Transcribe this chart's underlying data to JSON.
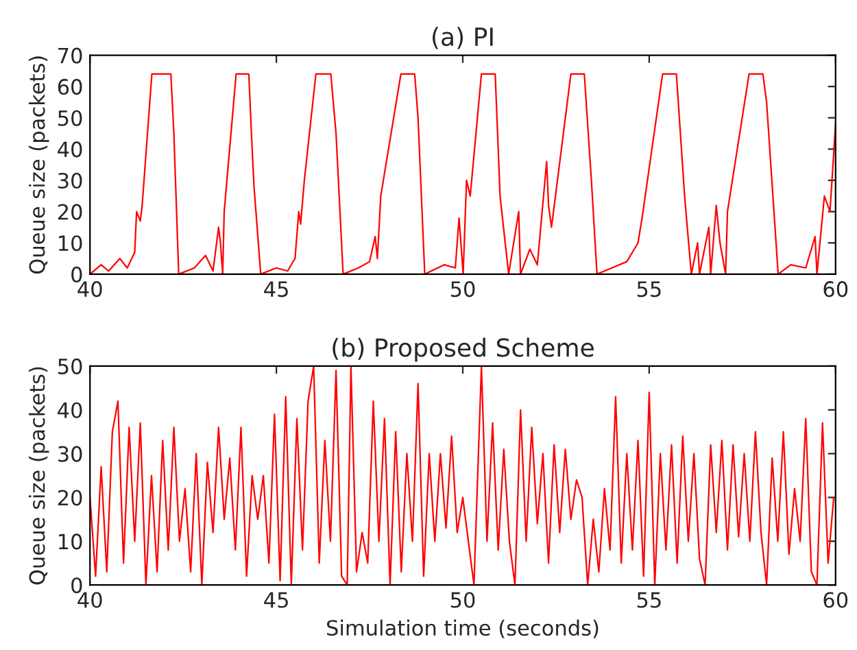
{
  "chart_data": [
    {
      "type": "line",
      "title": "(a) PI",
      "ylabel": "Queue size (packets)",
      "xlim": [
        40,
        60
      ],
      "ylim": [
        0,
        70
      ],
      "xticks": [
        40,
        45,
        50,
        55,
        60
      ],
      "yticks": [
        0,
        10,
        20,
        30,
        40,
        50,
        60,
        70
      ],
      "grid": false,
      "legend": false,
      "series": [
        {
          "color": "#ff0000",
          "x": [
            40.0,
            40.3,
            40.5,
            40.8,
            41.0,
            41.2,
            41.25,
            41.35,
            41.4,
            41.66,
            42.17,
            42.25,
            42.38,
            42.8,
            43.1,
            43.3,
            43.45,
            43.5,
            43.56,
            43.6,
            43.92,
            44.26,
            44.35,
            44.4,
            44.58,
            45.0,
            45.3,
            45.5,
            45.6,
            45.65,
            45.75,
            46.06,
            46.46,
            46.6,
            46.79,
            47.2,
            47.5,
            47.65,
            47.71,
            47.8,
            48.34,
            48.71,
            48.8,
            48.98,
            49.5,
            49.8,
            49.9,
            50.01,
            50.1,
            50.2,
            50.5,
            50.87,
            51.0,
            51.23,
            51.5,
            51.55,
            51.8,
            52.0,
            52.25,
            52.3,
            52.38,
            52.9,
            53.26,
            53.45,
            53.6,
            54.0,
            54.4,
            54.7,
            54.81,
            55.36,
            55.73,
            55.95,
            56.13,
            56.3,
            56.35,
            56.6,
            56.65,
            56.8,
            56.9,
            57.05,
            57.1,
            57.68,
            58.05,
            58.15,
            58.46,
            58.8,
            59.2,
            59.45,
            59.5,
            59.7,
            59.85,
            60.0
          ],
          "values": [
            0,
            3,
            1,
            5,
            2,
            7,
            20,
            17,
            22,
            64,
            64,
            45,
            0,
            2,
            6,
            1,
            15,
            10,
            0,
            20,
            64,
            64,
            40,
            28,
            0,
            2,
            1,
            5,
            20,
            16,
            30,
            64,
            64,
            45,
            0,
            2,
            4,
            12,
            5,
            25,
            64,
            64,
            50,
            0,
            3,
            2,
            18,
            0,
            30,
            25,
            64,
            64,
            25,
            0,
            20,
            0,
            8,
            3,
            36,
            22,
            15,
            64,
            64,
            30,
            0,
            2,
            4,
            10,
            18,
            64,
            64,
            25,
            0,
            10,
            0,
            15,
            0,
            22,
            10,
            0,
            20,
            64,
            64,
            55,
            0,
            3,
            2,
            12,
            0,
            25,
            20,
            48
          ]
        }
      ]
    },
    {
      "type": "line",
      "title": "(b) Proposed Scheme",
      "xlabel": "Simulation time (seconds)",
      "ylabel": "Queue size (packets)",
      "xlim": [
        40,
        60
      ],
      "ylim": [
        0,
        50
      ],
      "xticks": [
        40,
        45,
        50,
        55,
        60
      ],
      "yticks": [
        0,
        10,
        20,
        30,
        40,
        50
      ],
      "grid": false,
      "legend": false,
      "series": [
        {
          "color": "#ff0000",
          "x": [
            40.0,
            40.15,
            40.3,
            40.45,
            40.6,
            40.75,
            40.9,
            41.05,
            41.2,
            41.35,
            41.5,
            41.65,
            41.8,
            41.95,
            42.1,
            42.25,
            42.4,
            42.55,
            42.7,
            42.85,
            43.0,
            43.15,
            43.3,
            43.45,
            43.6,
            43.75,
            43.9,
            44.05,
            44.2,
            44.35,
            44.5,
            44.65,
            44.8,
            44.95,
            45.1,
            45.25,
            45.4,
            45.55,
            45.7,
            45.85,
            46.0,
            46.15,
            46.3,
            46.45,
            46.6,
            46.75,
            46.9,
            47.0,
            47.15,
            47.3,
            47.45,
            47.6,
            47.75,
            47.9,
            48.05,
            48.2,
            48.35,
            48.5,
            48.65,
            48.8,
            48.95,
            49.1,
            49.25,
            49.4,
            49.55,
            49.7,
            49.85,
            50.0,
            50.15,
            50.3,
            50.5,
            50.65,
            50.8,
            50.95,
            51.1,
            51.25,
            51.4,
            51.55,
            51.7,
            51.85,
            52.0,
            52.15,
            52.3,
            52.45,
            52.6,
            52.75,
            52.9,
            53.05,
            53.2,
            53.35,
            53.5,
            53.65,
            53.8,
            53.95,
            54.1,
            54.25,
            54.4,
            54.55,
            54.7,
            54.85,
            55.0,
            55.15,
            55.3,
            55.45,
            55.6,
            55.75,
            55.9,
            56.05,
            56.2,
            56.35,
            56.5,
            56.65,
            56.8,
            56.95,
            57.1,
            57.25,
            57.4,
            57.55,
            57.7,
            57.85,
            58.0,
            58.15,
            58.3,
            58.45,
            58.6,
            58.75,
            58.9,
            59.05,
            59.2,
            59.35,
            59.5,
            59.65,
            59.8,
            59.95
          ],
          "values": [
            20,
            2,
            27,
            3,
            35,
            42,
            5,
            36,
            10,
            37,
            0,
            25,
            3,
            33,
            8,
            36,
            10,
            22,
            3,
            30,
            0,
            28,
            12,
            36,
            15,
            29,
            8,
            36,
            2,
            25,
            15,
            25,
            5,
            39,
            1,
            43,
            0,
            38,
            8,
            42,
            50,
            5,
            33,
            10,
            49,
            2,
            0,
            50,
            3,
            12,
            5,
            42,
            10,
            38,
            0,
            35,
            3,
            30,
            10,
            46,
            2,
            30,
            10,
            30,
            13,
            34,
            12,
            20,
            10,
            0,
            50,
            10,
            37,
            8,
            31,
            10,
            0,
            40,
            10,
            36,
            14,
            30,
            5,
            32,
            12,
            31,
            15,
            24,
            20,
            0,
            15,
            3,
            22,
            8,
            43,
            5,
            30,
            8,
            33,
            2,
            44,
            0,
            30,
            8,
            32,
            5,
            34,
            10,
            30,
            6,
            0,
            32,
            12,
            33,
            8,
            32,
            11,
            30,
            10,
            35,
            12,
            0,
            29,
            10,
            35,
            7,
            22,
            10,
            38,
            3,
            0,
            37,
            5,
            20
          ]
        }
      ]
    }
  ]
}
